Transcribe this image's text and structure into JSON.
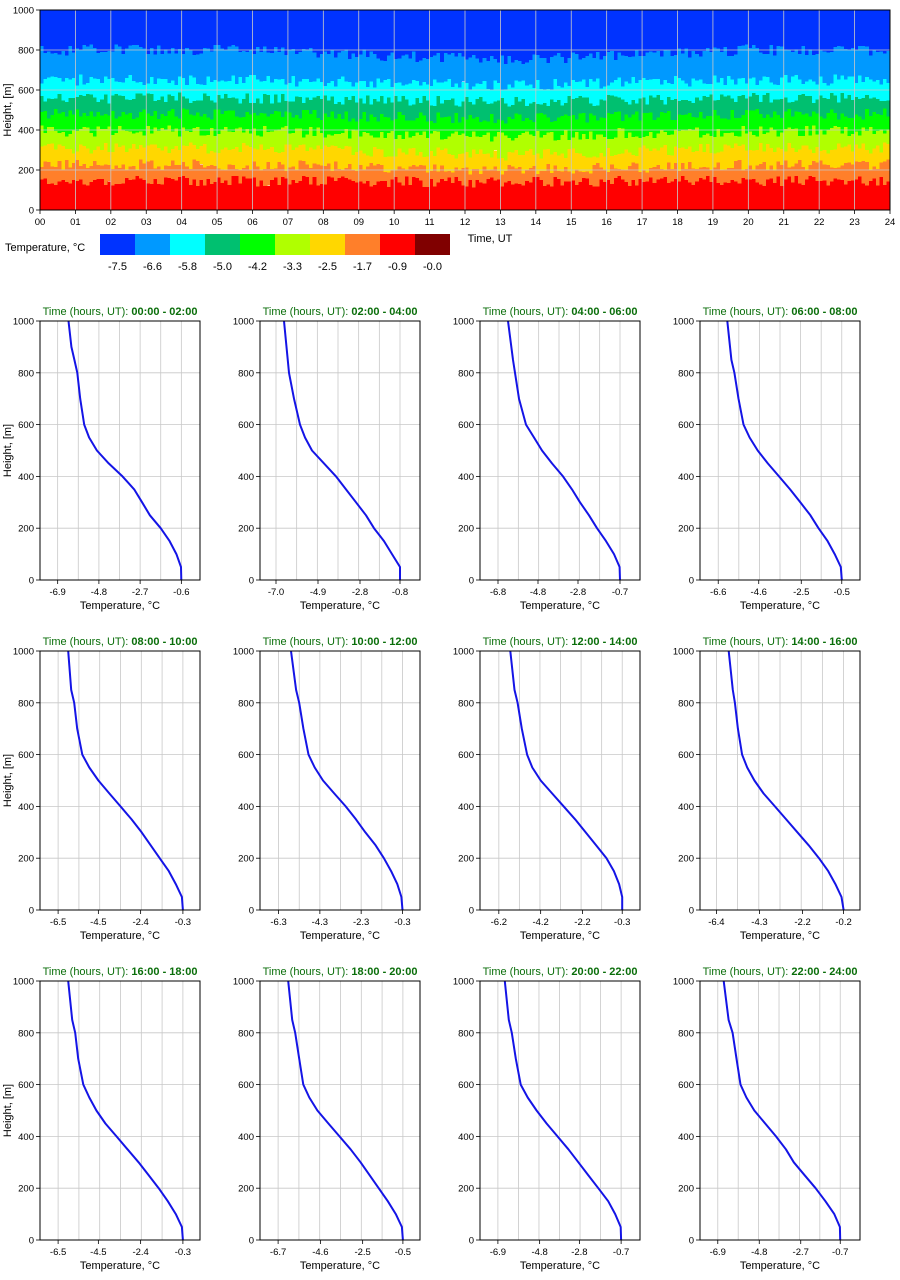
{
  "chart_data": [
    {
      "type": "heatmap",
      "xlabel": "Time, UT",
      "ylabel": "Height, [m]",
      "x_ticks": [
        "00",
        "01",
        "02",
        "03",
        "04",
        "05",
        "06",
        "07",
        "08",
        "09",
        "10",
        "11",
        "12",
        "13",
        "14",
        "15",
        "16",
        "17",
        "18",
        "19",
        "20",
        "21",
        "22",
        "23",
        "24"
      ],
      "y_ticks": [
        "0",
        "200",
        "400",
        "600",
        "800",
        "1000"
      ],
      "xlim": [
        0,
        24
      ],
      "ylim": [
        0,
        1000
      ],
      "legend_title": "Temperature, °C",
      "legend_labels": [
        "-7.5",
        "-6.6",
        "-5.8",
        "-5.0",
        "-4.2",
        "-3.3",
        "-2.5",
        "-1.7",
        "-0.9",
        "-0.0"
      ],
      "legend_colors": [
        "#0033ff",
        "#0099ff",
        "#00ffff",
        "#00c070",
        "#00ff00",
        "#b0ff00",
        "#ffd700",
        "#ff7f2a",
        "#ff0000",
        "#800000"
      ],
      "band_tops_m": [
        [
          145,
          225,
          310,
          395,
          480,
          560,
          650,
          800,
          1000
        ],
        [
          140,
          200,
          275,
          370,
          455,
          540,
          625,
          750,
          1000
        ]
      ],
      "legend_position": "bottom-left"
    },
    {
      "type": "line",
      "panels": [
        {
          "title_prefix": "Time (hours, UT):",
          "title_range": "00:00 - 02:00",
          "xlabel": "Temperature, °C",
          "ylabel": "Height, [m]",
          "x_ticks": [
            "-6.9",
            "-4.8",
            "-2.7",
            "-0.6"
          ],
          "xlim": [
            -7.8,
            0.35
          ],
          "ylim": [
            0,
            1000
          ],
          "y_ticks": [
            "0",
            "200",
            "400",
            "600",
            "800",
            "1000"
          ],
          "x": [
            -0.6,
            -0.62,
            -0.85,
            -1.2,
            -1.65,
            -2.2,
            -2.6,
            -3.0,
            -3.6,
            -4.3,
            -4.9,
            -5.3,
            -5.55,
            -5.75,
            -5.9,
            -6.05,
            -6.2,
            -6.35
          ],
          "y": [
            0,
            50,
            100,
            150,
            200,
            250,
            300,
            350,
            400,
            450,
            500,
            550,
            600,
            700,
            800,
            850,
            900,
            1000
          ]
        },
        {
          "title_prefix": "Time (hours, UT):",
          "title_range": "02:00 - 04:00",
          "xlabel": "Temperature, °C",
          "ylabel": "",
          "x_ticks": [
            "-7.0",
            "-4.9",
            "-2.8",
            "-0.8"
          ],
          "xlim": [
            -7.8,
            0.2
          ],
          "ylim": [
            0,
            1000
          ],
          "y_ticks": [
            "0",
            "200",
            "400",
            "600",
            "800",
            "1000"
          ],
          "x": [
            -0.8,
            -0.8,
            -1.2,
            -1.6,
            -2.1,
            -2.5,
            -3.0,
            -3.5,
            -4.0,
            -4.6,
            -5.2,
            -5.55,
            -5.8,
            -6.1,
            -6.35,
            -6.6
          ],
          "y": [
            0,
            50,
            100,
            150,
            200,
            250,
            300,
            350,
            400,
            450,
            500,
            550,
            600,
            700,
            800,
            1000
          ]
        },
        {
          "title_prefix": "Time (hours, UT):",
          "title_range": "04:00 - 06:00",
          "xlabel": "Temperature, °C",
          "ylabel": "",
          "x_ticks": [
            "-6.8",
            "-4.8",
            "-2.8",
            "-0.7"
          ],
          "xlim": [
            -7.7,
            0.3
          ],
          "ylim": [
            0,
            1000
          ],
          "y_ticks": [
            "0",
            "200",
            "400",
            "600",
            "800",
            "1000"
          ],
          "x": [
            -0.7,
            -0.72,
            -1.0,
            -1.4,
            -1.85,
            -2.25,
            -2.7,
            -3.1,
            -3.55,
            -4.1,
            -4.6,
            -5.0,
            -5.4,
            -5.75,
            -5.95,
            -6.05,
            -6.3
          ],
          "y": [
            0,
            50,
            100,
            150,
            200,
            250,
            300,
            350,
            400,
            450,
            500,
            550,
            600,
            700,
            800,
            850,
            1000
          ]
        },
        {
          "title_prefix": "Time (hours, UT):",
          "title_range": "06:00 - 08:00",
          "xlabel": "Temperature, °C",
          "ylabel": "",
          "x_ticks": [
            "-6.6",
            "-4.6",
            "-2.5",
            "-0.5"
          ],
          "xlim": [
            -7.5,
            0.4
          ],
          "ylim": [
            0,
            1000
          ],
          "y_ticks": [
            "0",
            "200",
            "400",
            "600",
            "800",
            "1000"
          ],
          "x": [
            -0.5,
            -0.55,
            -0.85,
            -1.2,
            -1.65,
            -2.05,
            -2.55,
            -3.05,
            -3.6,
            -4.15,
            -4.65,
            -5.05,
            -5.35,
            -5.6,
            -5.8,
            -5.95,
            -6.15
          ],
          "y": [
            0,
            50,
            100,
            150,
            200,
            250,
            300,
            350,
            400,
            450,
            500,
            550,
            600,
            700,
            800,
            850,
            1000
          ]
        },
        {
          "title_prefix": "Time (hours, UT):",
          "title_range": "08:00 - 10:00",
          "xlabel": "Temperature, °C",
          "ylabel": "Height, [m]",
          "x_ticks": [
            "-6.5",
            "-4.5",
            "-2.4",
            "-0.3"
          ],
          "xlim": [
            -7.4,
            0.55
          ],
          "ylim": [
            0,
            1000
          ],
          "y_ticks": [
            "0",
            "200",
            "400",
            "600",
            "800",
            "1000"
          ],
          "x": [
            -0.3,
            -0.35,
            -0.65,
            -1.0,
            -1.45,
            -1.9,
            -2.35,
            -2.85,
            -3.4,
            -3.95,
            -4.5,
            -4.95,
            -5.3,
            -5.55,
            -5.7,
            -5.85,
            -6.0
          ],
          "y": [
            0,
            50,
            100,
            150,
            200,
            250,
            300,
            350,
            400,
            450,
            500,
            550,
            600,
            700,
            800,
            850,
            1000
          ]
        },
        {
          "title_prefix": "Time (hours, UT):",
          "title_range": "10:00 - 12:00",
          "xlabel": "Temperature, °C",
          "ylabel": "",
          "x_ticks": [
            "-6.3",
            "-4.3",
            "-2.3",
            "-0.3"
          ],
          "xlim": [
            -7.2,
            0.55
          ],
          "ylim": [
            0,
            1000
          ],
          "y_ticks": [
            "0",
            "200",
            "400",
            "600",
            "800",
            "1000"
          ],
          "x": [
            -0.3,
            -0.35,
            -0.55,
            -0.85,
            -1.2,
            -1.6,
            -2.1,
            -2.55,
            -3.05,
            -3.6,
            -4.15,
            -4.55,
            -4.85,
            -5.1,
            -5.3,
            -5.45,
            -5.7
          ],
          "y": [
            0,
            50,
            100,
            150,
            200,
            250,
            300,
            350,
            400,
            450,
            500,
            550,
            600,
            700,
            800,
            850,
            1000
          ]
        },
        {
          "title_prefix": "Time (hours, UT):",
          "title_range": "12:00 - 14:00",
          "xlabel": "Temperature, °C",
          "ylabel": "",
          "x_ticks": [
            "-6.2",
            "-4.2",
            "-2.2",
            "-0.3"
          ],
          "xlim": [
            -7.1,
            0.55
          ],
          "ylim": [
            0,
            1000
          ],
          "y_ticks": [
            "0",
            "200",
            "400",
            "600",
            "800",
            "1000"
          ],
          "x": [
            -0.3,
            -0.3,
            -0.45,
            -0.7,
            -1.05,
            -1.55,
            -2.05,
            -2.55,
            -3.1,
            -3.65,
            -4.2,
            -4.6,
            -4.85,
            -5.1,
            -5.3,
            -5.45,
            -5.65
          ],
          "y": [
            0,
            50,
            100,
            150,
            200,
            250,
            300,
            350,
            400,
            450,
            500,
            550,
            600,
            700,
            800,
            850,
            1000
          ]
        },
        {
          "title_prefix": "Time (hours, UT):",
          "title_range": "14:00 - 16:00",
          "xlabel": "Temperature, °C",
          "ylabel": "",
          "x_ticks": [
            "-6.4",
            "-4.3",
            "-2.2",
            "-0.2"
          ],
          "xlim": [
            -7.2,
            0.6
          ],
          "ylim": [
            0,
            1000
          ],
          "y_ticks": [
            "0",
            "200",
            "400",
            "600",
            "800",
            "1000"
          ],
          "x": [
            -0.2,
            -0.3,
            -0.6,
            -0.95,
            -1.4,
            -1.9,
            -2.45,
            -3.0,
            -3.55,
            -4.1,
            -4.55,
            -4.9,
            -5.15,
            -5.35,
            -5.5,
            -5.6,
            -5.8
          ],
          "y": [
            0,
            50,
            100,
            150,
            200,
            250,
            300,
            350,
            400,
            450,
            500,
            550,
            600,
            700,
            800,
            850,
            1000
          ]
        },
        {
          "title_prefix": "Time (hours, UT):",
          "title_range": "16:00 - 18:00",
          "xlabel": "Temperature, °C",
          "ylabel": "Height, [m]",
          "x_ticks": [
            "-6.5",
            "-4.5",
            "-2.4",
            "-0.3"
          ],
          "xlim": [
            -7.4,
            0.55
          ],
          "ylim": [
            0,
            1000
          ],
          "y_ticks": [
            "0",
            "200",
            "400",
            "600",
            "800",
            "1000"
          ],
          "x": [
            -0.3,
            -0.35,
            -0.65,
            -1.05,
            -1.5,
            -2.0,
            -2.5,
            -3.05,
            -3.6,
            -4.15,
            -4.6,
            -4.95,
            -5.25,
            -5.5,
            -5.65,
            -5.8,
            -6.0
          ],
          "y": [
            0,
            50,
            100,
            150,
            200,
            250,
            300,
            350,
            400,
            450,
            500,
            550,
            600,
            700,
            800,
            850,
            1000
          ]
        },
        {
          "title_prefix": "Time (hours, UT):",
          "title_range": "18:00 - 20:00",
          "xlabel": "Temperature, °C",
          "ylabel": "",
          "x_ticks": [
            "-6.7",
            "-4.6",
            "-2.5",
            "-0.5"
          ],
          "xlim": [
            -7.6,
            0.35
          ],
          "ylim": [
            0,
            1000
          ],
          "y_ticks": [
            "0",
            "200",
            "400",
            "600",
            "800",
            "1000"
          ],
          "x": [
            -0.5,
            -0.55,
            -0.85,
            -1.25,
            -1.7,
            -2.15,
            -2.6,
            -3.1,
            -3.65,
            -4.2,
            -4.75,
            -5.15,
            -5.45,
            -5.65,
            -5.85,
            -6.0,
            -6.2
          ],
          "y": [
            0,
            50,
            100,
            150,
            200,
            250,
            300,
            350,
            400,
            450,
            500,
            550,
            600,
            700,
            800,
            850,
            1000
          ]
        },
        {
          "title_prefix": "Time (hours, UT):",
          "title_range": "20:00 - 22:00",
          "xlabel": "Temperature, °C",
          "ylabel": "",
          "x_ticks": [
            "-6.9",
            "-4.8",
            "-2.8",
            "-0.7"
          ],
          "xlim": [
            -7.8,
            0.25
          ],
          "ylim": [
            0,
            1000
          ],
          "y_ticks": [
            "0",
            "200",
            "400",
            "600",
            "800",
            "1000"
          ],
          "x": [
            -0.7,
            -0.72,
            -1.0,
            -1.35,
            -1.85,
            -2.35,
            -2.85,
            -3.35,
            -3.9,
            -4.45,
            -4.95,
            -5.4,
            -5.75,
            -6.0,
            -6.2,
            -6.35,
            -6.55
          ],
          "y": [
            0,
            50,
            100,
            150,
            200,
            250,
            300,
            350,
            400,
            450,
            500,
            550,
            600,
            700,
            800,
            850,
            1000
          ]
        },
        {
          "title_prefix": "Time (hours, UT):",
          "title_range": "22:00 - 24:00",
          "xlabel": "Temperature, °C",
          "ylabel": "",
          "x_ticks": [
            "-6.9",
            "-4.8",
            "-2.7",
            "-0.7"
          ],
          "xlim": [
            -7.8,
            0.3
          ],
          "ylim": [
            0,
            1000
          ],
          "y_ticks": [
            "0",
            "200",
            "400",
            "600",
            "800",
            "1000"
          ],
          "x": [
            -0.7,
            -0.72,
            -1.0,
            -1.45,
            -1.95,
            -2.5,
            -3.05,
            -3.45,
            -3.95,
            -4.5,
            -5.05,
            -5.45,
            -5.75,
            -5.95,
            -6.15,
            -6.35,
            -6.6
          ],
          "y": [
            0,
            50,
            100,
            150,
            200,
            250,
            300,
            350,
            400,
            450,
            500,
            550,
            600,
            700,
            800,
            850,
            1000
          ]
        }
      ]
    }
  ]
}
